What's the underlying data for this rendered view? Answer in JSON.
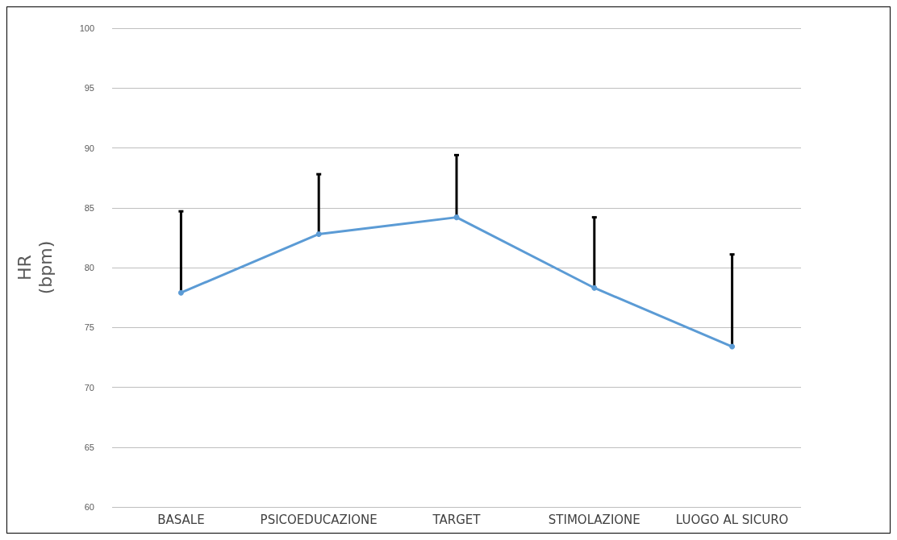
{
  "chart_data": {
    "type": "line",
    "ylabel": "HR\n(bpm)",
    "categories": [
      "BASALE",
      "PSICOEDUCAZIONE",
      "TARGET",
      "STIMOLAZIONE",
      "LUOGO AL SICURO"
    ],
    "series": [
      {
        "color": "#5b9bd5",
        "values": [
          77.9,
          82.8,
          84.2,
          78.3,
          73.4
        ],
        "errors": [
          [
            77.9,
            84.7
          ],
          [
            82.8,
            87.8
          ],
          [
            84.2,
            89.4
          ],
          [
            78.3,
            84.2
          ],
          [
            73.4,
            81.1
          ]
        ]
      }
    ],
    "ylim": [
      60,
      100
    ],
    "yticks": [
      60,
      65,
      70,
      75,
      80,
      85,
      90,
      95,
      100
    ],
    "grid": "y",
    "marker": "circle",
    "line_style": "solid"
  }
}
